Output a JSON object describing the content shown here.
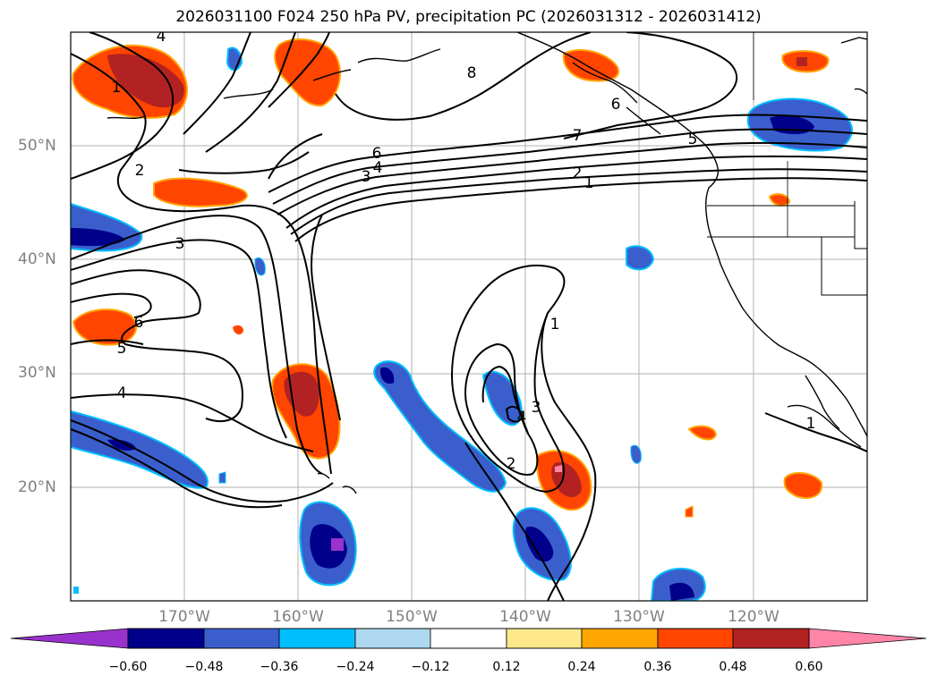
{
  "title": "2026031100 F024 250 hPa PV, precipitation PC (2026031312 - 2026031412)",
  "map": {
    "latitude_labels": [
      "50°N",
      "40°N",
      "30°N",
      "20°N"
    ],
    "longitude_labels": [
      "170°W",
      "160°W",
      "150°W",
      "140°W",
      "130°W",
      "120°W"
    ],
    "pv_contour_labels": [
      "4",
      "1",
      "2",
      "3",
      "8",
      "7",
      "6",
      "4",
      "3",
      "2",
      "1",
      "6",
      "5",
      "4",
      "1",
      "3",
      "4",
      "2",
      "1",
      "5",
      "6"
    ]
  },
  "colorbar": {
    "ticks": [
      "−0.60",
      "−0.48",
      "−0.36",
      "−0.24",
      "−0.12",
      "0.12",
      "0.24",
      "0.36",
      "0.48",
      "0.60"
    ],
    "colors": [
      "#9932cc",
      "#00008b",
      "#3a5fcd",
      "#00bfff",
      "#add8f0",
      "#ffffff",
      "#fde98a",
      "#ffa500",
      "#ff4500",
      "#b22222",
      "#ff85a8",
      "#ff85a8"
    ]
  }
}
